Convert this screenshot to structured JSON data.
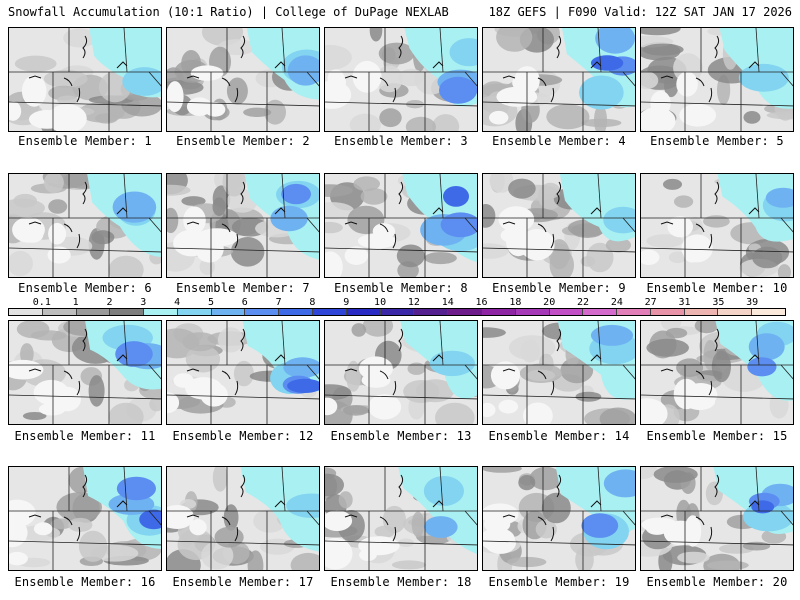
{
  "header": {
    "left_title": "Snowfall Accumulation (10:1 Ratio) | College of DuPage NEXLAB",
    "right_title": "18Z GEFS | F090 Valid: 12Z SAT JAN 17 2026"
  },
  "colorbar": {
    "labels": [
      "0.1",
      "1",
      "2",
      "3",
      "4",
      "5",
      "6",
      "7",
      "8",
      "9",
      "10",
      "12",
      "14",
      "16",
      "18",
      "20",
      "22",
      "24",
      "27",
      "31",
      "35",
      "39"
    ],
    "colors": [
      "#e2e2e2",
      "#bdbdbd",
      "#9a9a9a",
      "#7e7e7e",
      "#a9f0f2",
      "#82d4f0",
      "#6fb2f2",
      "#5b8ef0",
      "#3e6ae8",
      "#2f45d8",
      "#2a2ac4",
      "#3b28a8",
      "#55208f",
      "#6e1c8c",
      "#8d25a4",
      "#a639b8",
      "#c24fc6",
      "#d36acc",
      "#e37fb8",
      "#e893a8",
      "#eeb4b0",
      "#f4d4c6",
      "#fbe9dc"
    ]
  },
  "members": [
    {
      "label": "Ensemble Member: 1"
    },
    {
      "label": "Ensemble Member: 2"
    },
    {
      "label": "Ensemble Member: 3"
    },
    {
      "label": "Ensemble Member: 4"
    },
    {
      "label": "Ensemble Member: 5"
    },
    {
      "label": "Ensemble Member: 6"
    },
    {
      "label": "Ensemble Member: 7"
    },
    {
      "label": "Ensemble Member: 8"
    },
    {
      "label": "Ensemble Member: 9"
    },
    {
      "label": "Ensemble Member: 10"
    },
    {
      "label": "Ensemble Member: 11"
    },
    {
      "label": "Ensemble Member: 12"
    },
    {
      "label": "Ensemble Member: 13"
    },
    {
      "label": "Ensemble Member: 14"
    },
    {
      "label": "Ensemble Member: 15"
    },
    {
      "label": "Ensemble Member: 16"
    },
    {
      "label": "Ensemble Member: 17"
    },
    {
      "label": "Ensemble Member: 18"
    },
    {
      "label": "Ensemble Member: 19"
    },
    {
      "label": "Ensemble Member: 20"
    }
  ]
}
